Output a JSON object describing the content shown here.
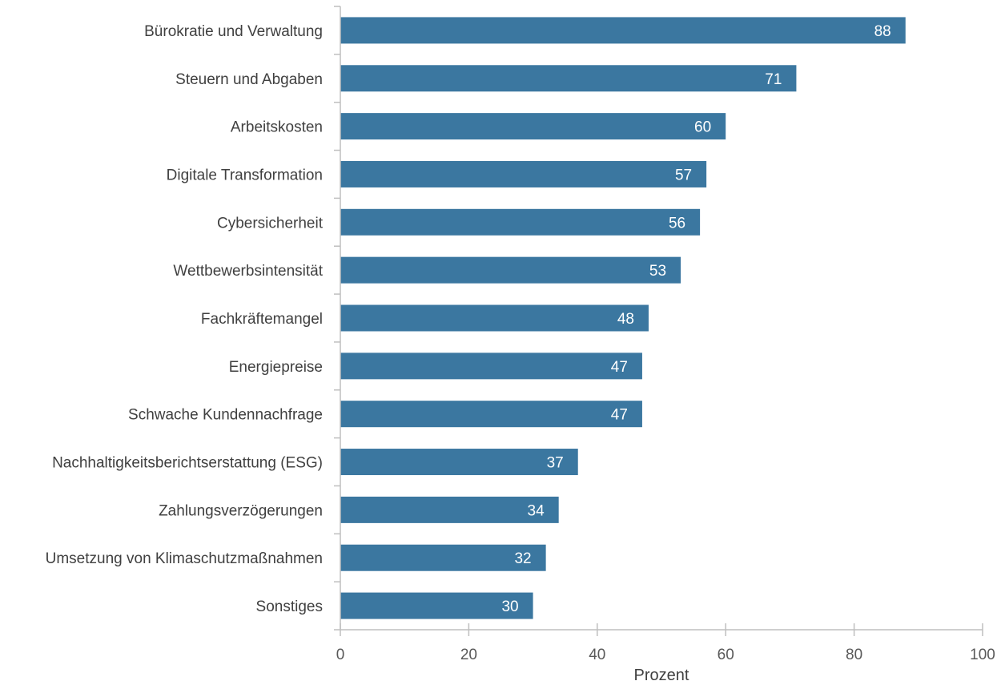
{
  "chart_data": {
    "type": "bar",
    "orientation": "horizontal",
    "categories": [
      "Bürokratie und Verwaltung",
      "Steuern und Abgaben",
      "Arbeitskosten",
      "Digitale Transformation",
      "Cybersicherheit",
      "Wettbewerbsintensität",
      "Fachkräftemangel",
      "Energiepreise",
      "Schwache Kundennachfrage",
      "Nachhaltigkeitsberichtserstattung (ESG)",
      "Zahlungsverzögerungen",
      "Umsetzung von Klimaschutzmaßnahmen",
      "Sonstiges"
    ],
    "values": [
      88,
      71,
      60,
      57,
      56,
      53,
      48,
      47,
      47,
      37,
      34,
      32,
      30
    ],
    "xlabel": "Prozent",
    "ylabel": "",
    "xlim": [
      0,
      100
    ],
    "xticks": [
      "0",
      "20",
      "40",
      "60",
      "80",
      "100"
    ],
    "grid": false,
    "bar_color": "#3b77a0"
  }
}
